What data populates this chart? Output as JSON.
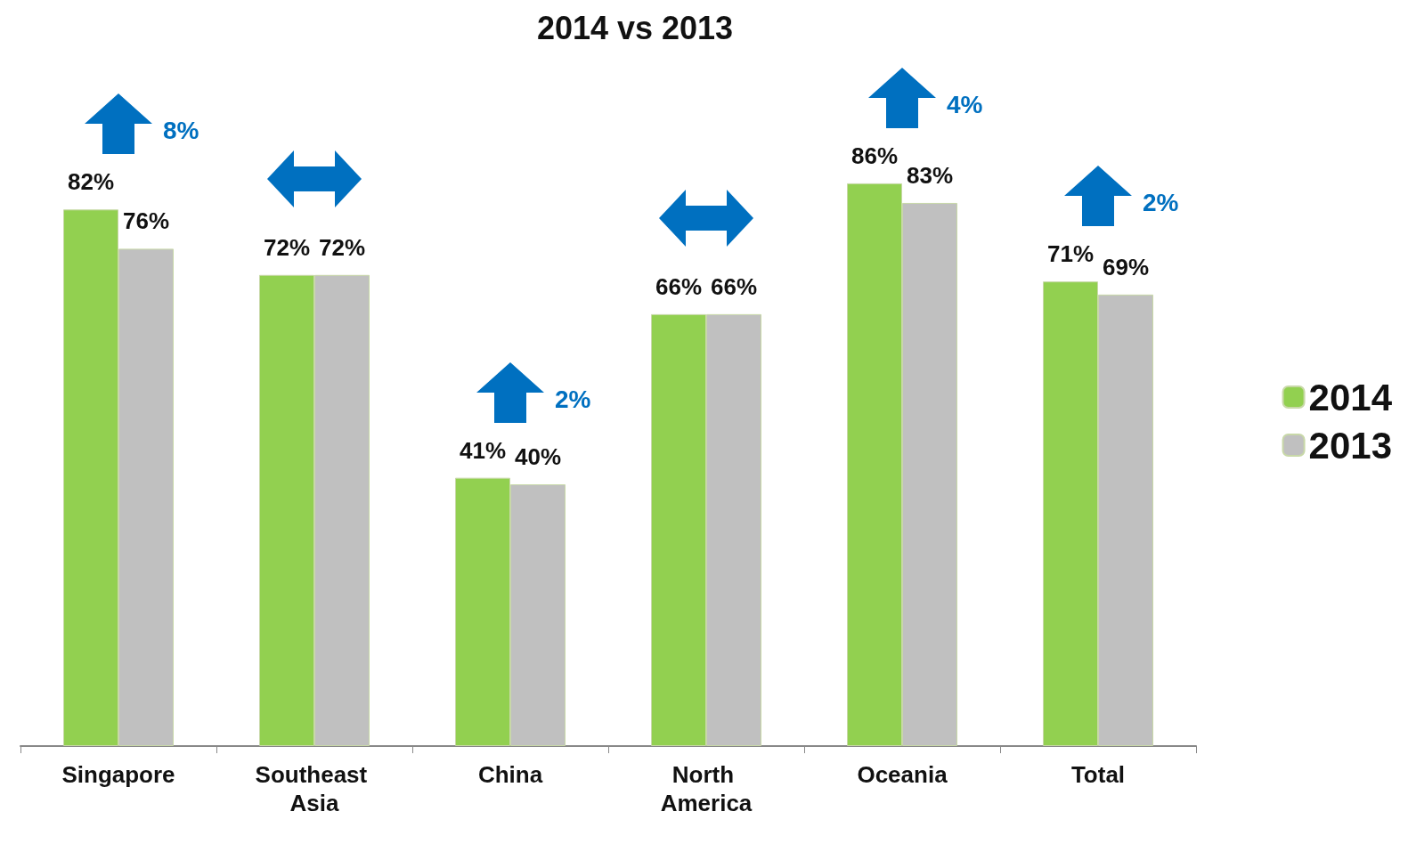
{
  "chart_data": {
    "type": "bar",
    "title": "2014 vs 2013",
    "categories": [
      "Singapore",
      "Southeast Asia",
      "China",
      "North America",
      "Oceania",
      "Total"
    ],
    "series": [
      {
        "name": "2014",
        "color": "#92d050",
        "values": [
          82,
          72,
          41,
          66,
          86,
          71
        ],
        "value_labels": [
          "82%",
          "72%",
          "41%",
          "66%",
          "86%",
          "71%"
        ]
      },
      {
        "name": "2013",
        "color": "#c0c0c0",
        "values": [
          76,
          72,
          40,
          66,
          83,
          69
        ],
        "value_labels": [
          "76%",
          "72%",
          "40%",
          "66%",
          "83%",
          "69%"
        ]
      }
    ],
    "legend": "right",
    "tick_labels": "x",
    "annotations": [
      "8%",
      "2%",
      "4%",
      "2%"
    ]
  }
}
